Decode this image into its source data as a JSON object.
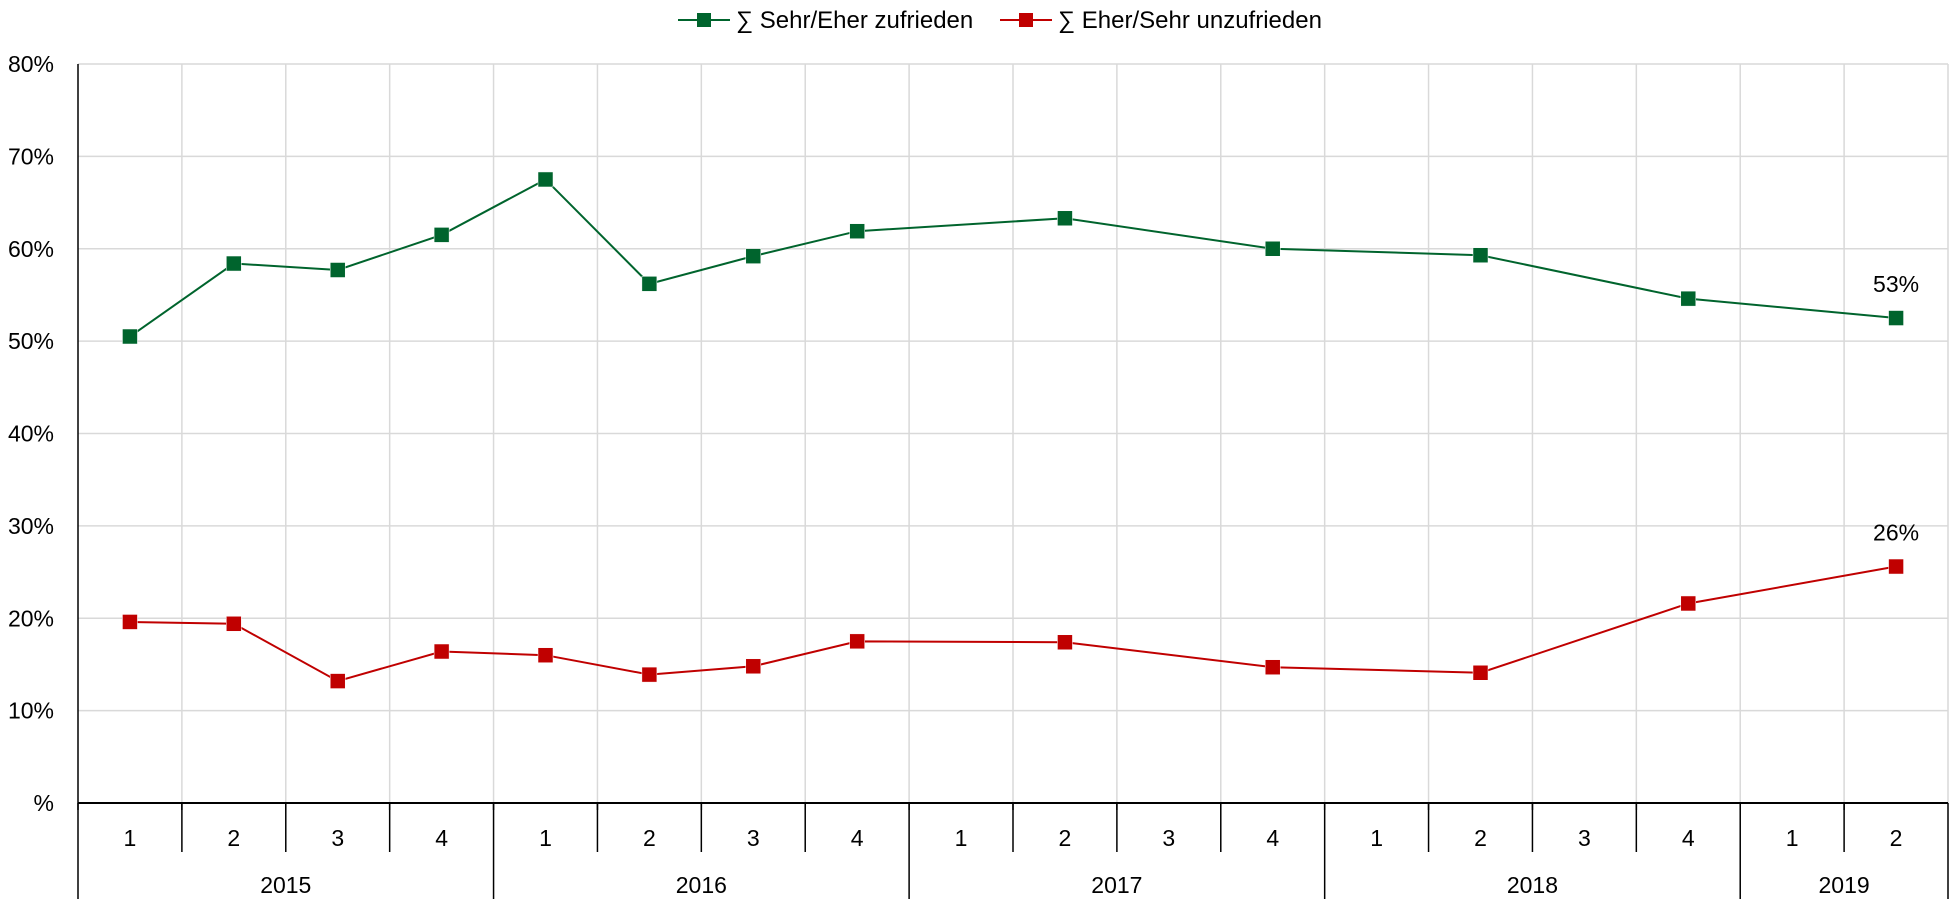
{
  "chart_data": {
    "type": "line",
    "title": "",
    "xlabel": "",
    "ylabel": "",
    "ylim": [
      0,
      80
    ],
    "y_ticks": [
      "%",
      "10%",
      "20%",
      "30%",
      "40%",
      "50%",
      "60%",
      "70%",
      "80%"
    ],
    "grid": true,
    "legend_position": "top",
    "years": [
      {
        "label": "2015",
        "quarters": [
          "1",
          "2",
          "3",
          "4"
        ]
      },
      {
        "label": "2016",
        "quarters": [
          "1",
          "2",
          "3",
          "4"
        ]
      },
      {
        "label": "2017",
        "quarters": [
          "1",
          "2",
          "3",
          "4"
        ]
      },
      {
        "label": "2018",
        "quarters": [
          "1",
          "2",
          "3",
          "4"
        ]
      },
      {
        "label": "2019",
        "quarters": [
          "1",
          "2"
        ]
      }
    ],
    "series": [
      {
        "name": "∑ Sehr/Eher zufrieden",
        "color": "#00642d",
        "points": [
          {
            "slot": 0,
            "value": 50.5
          },
          {
            "slot": 1,
            "value": 58.4
          },
          {
            "slot": 2,
            "value": 57.7
          },
          {
            "slot": 3,
            "value": 61.5
          },
          {
            "slot": 4,
            "value": 67.5
          },
          {
            "slot": 5,
            "value": 56.2
          },
          {
            "slot": 6,
            "value": 59.2
          },
          {
            "slot": 7,
            "value": 61.9
          },
          {
            "slot": 9,
            "value": 63.3
          },
          {
            "slot": 11,
            "value": 60.0
          },
          {
            "slot": 13,
            "value": 59.3
          },
          {
            "slot": 15,
            "value": 54.6
          },
          {
            "slot": 17,
            "value": 52.5
          }
        ],
        "end_label": "53%"
      },
      {
        "name": "∑ Eher/Sehr unzufrieden",
        "color": "#c00000",
        "points": [
          {
            "slot": 0,
            "value": 19.6
          },
          {
            "slot": 1,
            "value": 19.4
          },
          {
            "slot": 2,
            "value": 13.2
          },
          {
            "slot": 3,
            "value": 16.4
          },
          {
            "slot": 4,
            "value": 16.0
          },
          {
            "slot": 5,
            "value": 13.9
          },
          {
            "slot": 6,
            "value": 14.8
          },
          {
            "slot": 7,
            "value": 17.5
          },
          {
            "slot": 9,
            "value": 17.4
          },
          {
            "slot": 11,
            "value": 14.7
          },
          {
            "slot": 13,
            "value": 14.1
          },
          {
            "slot": 15,
            "value": 21.6
          },
          {
            "slot": 17,
            "value": 25.6
          }
        ],
        "end_label": "26%"
      }
    ]
  }
}
